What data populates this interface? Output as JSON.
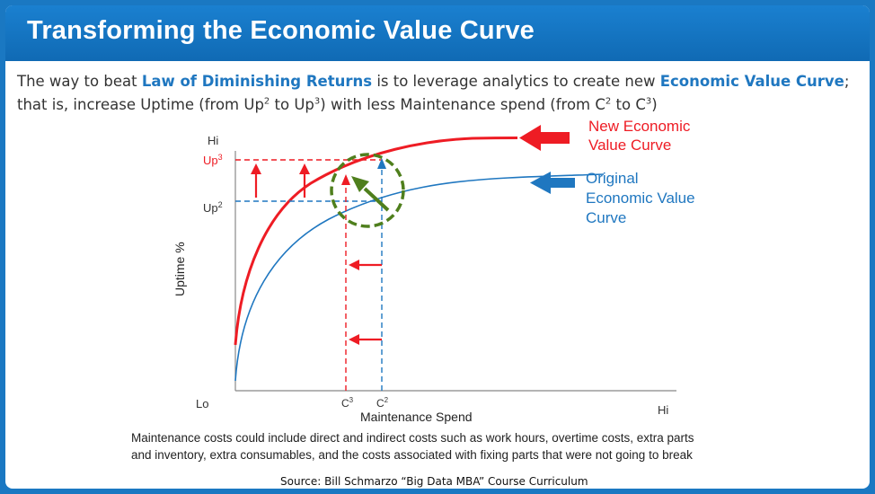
{
  "title": "Transforming the Economic Value Curve",
  "intro": {
    "part1": "The way to beat ",
    "term1": "Law of Diminishing Returns",
    "part2": " is to leverage analytics to create new ",
    "term2": "Economic Value Curve",
    "part3": ";",
    "line2_a": "that is, increase Uptime (from Up",
    "sup1": "2",
    "line2_b": " to Up",
    "sup2": "3",
    "line2_c": ") with less Maintenance spend (from C",
    "sup3": "2",
    "line2_d": " to C",
    "sup4": "3",
    "line2_e": ")"
  },
  "axes": {
    "y_title": "Uptime %",
    "y_hi": "Hi",
    "y_up3": "Up",
    "y_up3_sup": "3",
    "y_up2": "Up",
    "y_up2_sup": "2",
    "x_title": "Maintenance Spend",
    "x_lo": "Lo",
    "x_hi": "Hi",
    "x_c3": "C",
    "x_c3_sup": "3",
    "x_c2": "C",
    "x_c2_sup": "2"
  },
  "curves": {
    "new_label_line1": "New Economic",
    "new_label_line2": "Value Curve",
    "orig_label_line1": "Original",
    "orig_label_line2": "Economic Value",
    "orig_label_line3": "Curve"
  },
  "footnote": {
    "line1": "Maintenance costs could include direct and indirect costs such as work hours, overtime costs, extra parts",
    "line2": "and inventory, extra consumables, and the costs associated with fixing parts that were not going to break"
  },
  "source": "Source:  Bill Schmarzo “Big Data MBA” Course Curriculum",
  "colors": {
    "frame": "#1a78c2",
    "red": "#ee1c24",
    "blue": "#1f77c0",
    "green": "#4f7f1d"
  }
}
